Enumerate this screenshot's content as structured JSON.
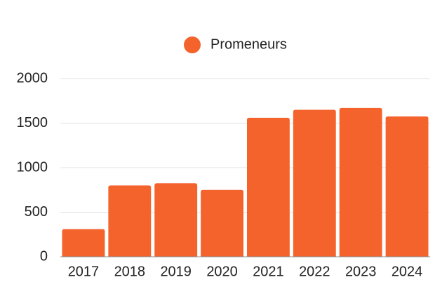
{
  "chart_data": {
    "type": "bar",
    "categories": [
      "2017",
      "2018",
      "2019",
      "2020",
      "2021",
      "2022",
      "2023",
      "2024"
    ],
    "series": [
      {
        "name": "Promeneurs",
        "color": "#f5632d",
        "values": [
          310,
          800,
          825,
          750,
          1560,
          1650,
          1670,
          1575
        ]
      }
    ],
    "ylim": [
      0,
      2000
    ],
    "yticks": [
      0,
      500,
      1000,
      1500,
      2000
    ],
    "grid": true,
    "legend": "top"
  }
}
